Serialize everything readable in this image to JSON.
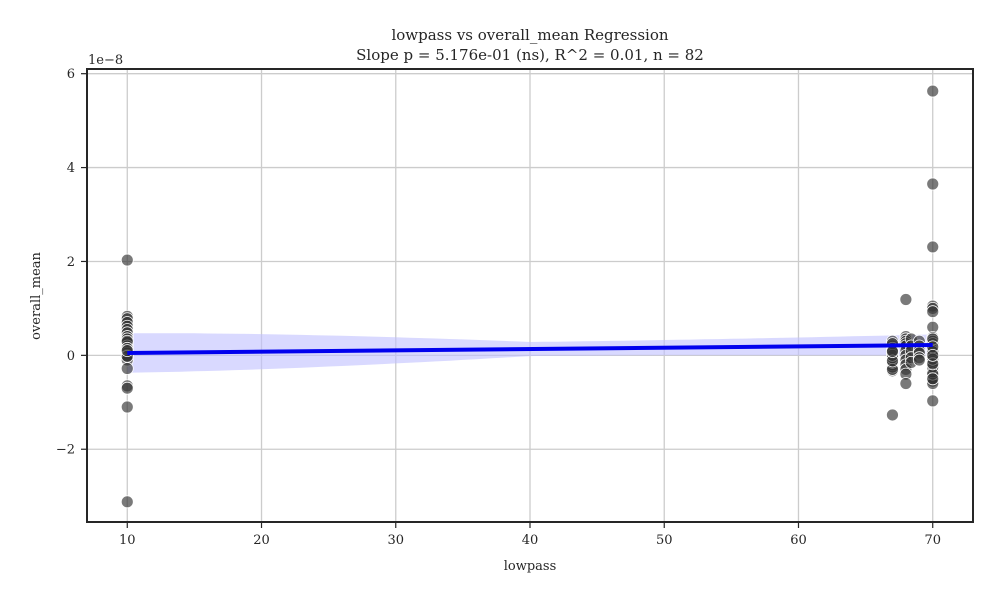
{
  "chart_data": {
    "type": "scatter",
    "title": "lowpass vs overall_mean Regression",
    "subtitle": "Slope p = 5.176e-01 (ns), R^2 = 0.01, n = 82",
    "xlabel": "lowpass",
    "ylabel": "overall_mean",
    "y_offset_label": "1e−8",
    "xlim": [
      7,
      73
    ],
    "ylim": [
      -3.55,
      6.1
    ],
    "grid": true,
    "x_ticks": [
      10,
      20,
      30,
      40,
      50,
      60,
      70
    ],
    "x_tick_labels": [
      "10",
      "20",
      "30",
      "40",
      "50",
      "60",
      "70"
    ],
    "y_ticks": [
      -2,
      0,
      2,
      4,
      6
    ],
    "y_tick_labels": [
      "−2",
      "0",
      "2",
      "4",
      "6"
    ],
    "points_color": "#333333",
    "series": [
      {
        "x": [
          10,
          10,
          10,
          10,
          10,
          10,
          10,
          10,
          10,
          10,
          10,
          10,
          10,
          10,
          10,
          10,
          10,
          10,
          10,
          10,
          10,
          10,
          10,
          10,
          10,
          67,
          67,
          67,
          67,
          67,
          67,
          67,
          67,
          67,
          67,
          67,
          67,
          67,
          67,
          67,
          67,
          67,
          67,
          67,
          70,
          70,
          70,
          70,
          70,
          70,
          70,
          70,
          70,
          70,
          70,
          70,
          70,
          70,
          70,
          70,
          70,
          70,
          70,
          70,
          70,
          70,
          70,
          70,
          70,
          70,
          70,
          70,
          70,
          70,
          70,
          70,
          70,
          70,
          70,
          70,
          70,
          70
        ],
        "y": [
          2.03,
          0.83,
          0.78,
          0.7,
          0.62,
          0.55,
          0.48,
          0.4,
          0.35,
          0.28,
          0.2,
          0.12,
          0.05,
          0.0,
          -0.05,
          -0.1,
          -0.28,
          -0.65,
          -0.7,
          -1.1,
          -3.12,
          0.3,
          0.15,
          -0.02,
          0.1,
          -1.27,
          -0.33,
          -0.2,
          -0.1,
          0.0,
          0.1,
          0.2,
          0.3,
          -0.25,
          -0.15,
          0.05,
          -0.05,
          0.15,
          0.25,
          0.0,
          -0.3,
          0.1,
          -0.12,
          0.08,
          5.63,
          3.65,
          2.31,
          1.05,
          1.0,
          0.93,
          0.6,
          0.38,
          0.3,
          0.2,
          0.1,
          0.0,
          -0.05,
          -0.1,
          -0.2,
          -0.3,
          -0.45,
          -0.5,
          -0.55,
          -0.6,
          -0.97,
          0.15,
          0.05,
          -0.15,
          0.25,
          -0.35,
          0.02,
          -0.02,
          0.12,
          -0.25,
          0.35,
          -0.4,
          0.08,
          -0.08,
          0.18,
          -0.18,
          -0.5,
          0.0
        ]
      },
      {
        "x": [
          68,
          68,
          68,
          68,
          68,
          68,
          68,
          68,
          68,
          68,
          68,
          68,
          68
        ],
        "y": [
          1.19,
          0.4,
          0.35,
          0.3,
          0.25,
          0.2,
          0.1,
          0.0,
          -0.1,
          -0.2,
          -0.3,
          -0.4,
          -0.6
        ]
      },
      {
        "x": [
          68.4,
          68.4,
          68.4,
          68.4,
          68.4,
          69,
          69,
          69,
          69,
          69,
          69
        ],
        "y": [
          0.35,
          0.2,
          0.1,
          -0.05,
          -0.15,
          0.3,
          0.2,
          0.1,
          0.05,
          -0.05,
          -0.1
        ]
      }
    ],
    "regression": {
      "line_color": "#0000ee",
      "band_color": "#bfbfff",
      "x": [
        10,
        70
      ],
      "y": [
        0.05,
        0.22
      ],
      "band_lower": [
        -0.42,
        0.0
      ],
      "band_upper": [
        0.42,
        0.45
      ],
      "band_min_x": 40,
      "band_min_halfwidth": 0.15
    }
  }
}
